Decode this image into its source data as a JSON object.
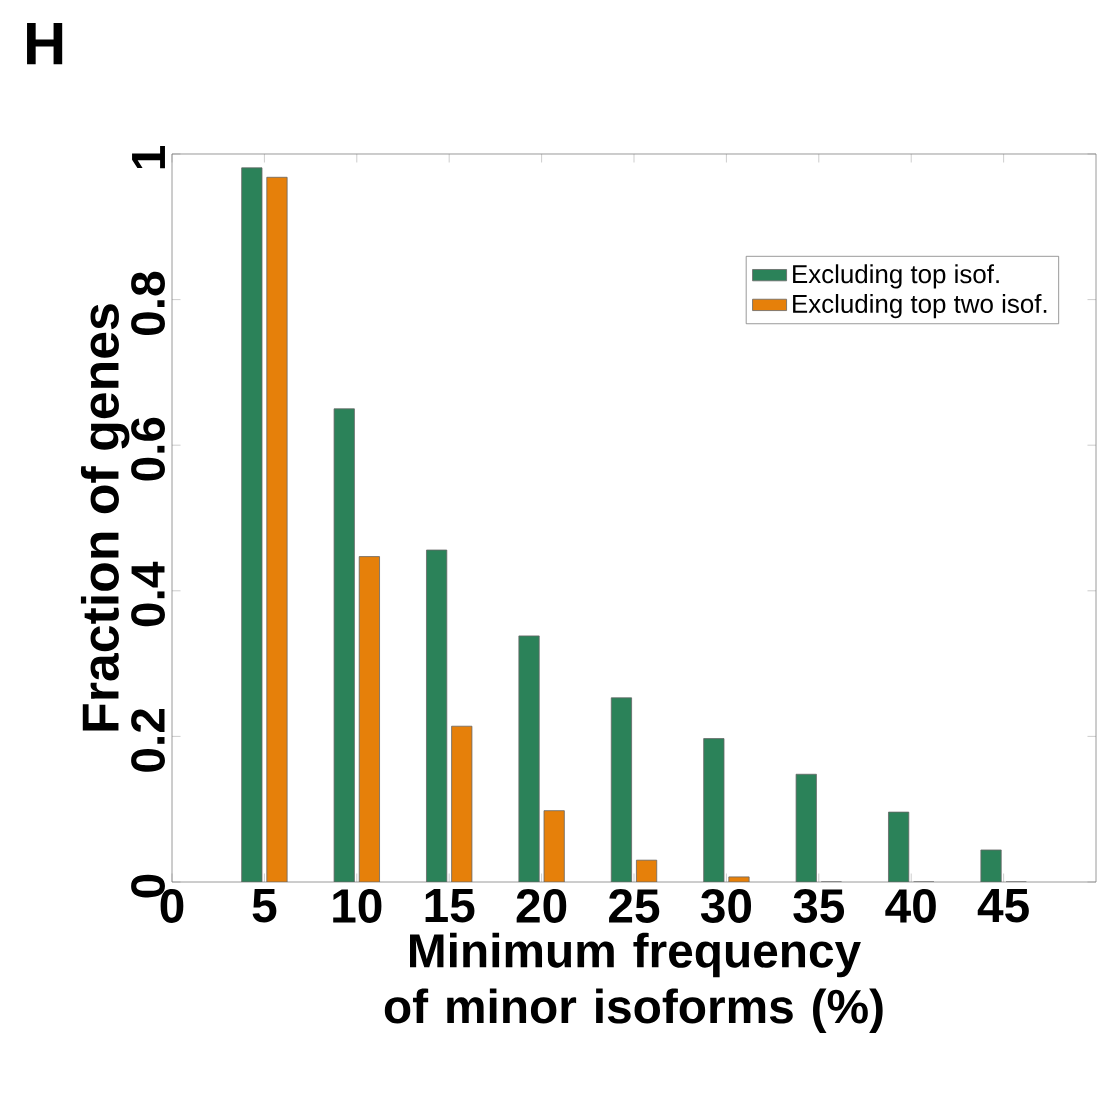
{
  "chart_data": {
    "type": "bar",
    "annotations": [
      "H"
    ],
    "xlabel": "Minimum frequency of minor isoforms (%)",
    "ylabel": "Fraction of genes",
    "x": [
      5,
      10,
      15,
      20,
      25,
      30,
      35,
      40,
      45
    ],
    "series": [
      {
        "name": "Excluding top isof.",
        "color": "#2b8259",
        "values": [
          0.981,
          0.65,
          0.456,
          0.338,
          0.253,
          0.197,
          0.148,
          0.096,
          0.044
        ]
      },
      {
        "name": "Excluding top two isof.",
        "color": "#e6800a",
        "values": [
          0.968,
          0.447,
          0.214,
          0.098,
          0.03,
          0.007,
          0,
          0,
          0
        ]
      }
    ],
    "xlim": [
      0,
      50
    ],
    "xticks": [
      0,
      5,
      10,
      15,
      20,
      25,
      30,
      35,
      40,
      45
    ],
    "ylim": [
      0,
      1
    ],
    "yticks": [
      0,
      0.2,
      0.4,
      0.6,
      0.8,
      1
    ],
    "legend": "top right",
    "grid": false
  }
}
